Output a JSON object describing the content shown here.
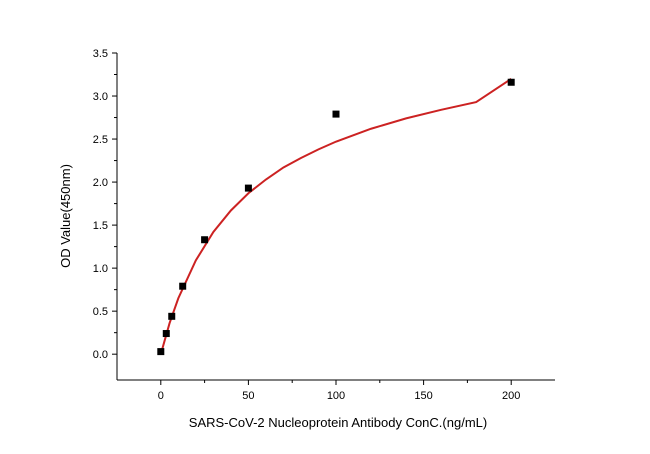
{
  "chart_data": {
    "type": "scatter",
    "title": "",
    "xlabel": "SARS-CoV-2 Nucleoprotein Antibody ConC.(ng/mL)",
    "ylabel": "OD Value(450nm)",
    "xlim": [
      -25,
      225
    ],
    "ylim": [
      -0.3,
      3.5
    ],
    "x_ticks": [
      0,
      50,
      100,
      150,
      200
    ],
    "y_ticks": [
      0.0,
      0.5,
      1.0,
      1.5,
      2.0,
      2.5,
      3.0,
      3.5
    ],
    "x_tick_labels": [
      "0",
      "50",
      "100",
      "150",
      "200"
    ],
    "y_tick_labels": [
      "0.0",
      "0.5",
      "1.0",
      "1.5",
      "2.0",
      "2.5",
      "3.0",
      "3.5"
    ],
    "series": [
      {
        "x": [
          0,
          3.125,
          6.25,
          12.5,
          25,
          50,
          100,
          200
        ],
        "y": [
          0.03,
          0.24,
          0.44,
          0.79,
          1.33,
          1.93,
          2.79,
          3.16
        ]
      }
    ],
    "fit_curve": {
      "x": [
        0,
        5,
        10,
        20,
        30,
        40,
        50,
        60,
        70,
        80,
        90,
        100,
        120,
        140,
        160,
        180,
        200
      ],
      "y": [
        0.0,
        0.36,
        0.65,
        1.09,
        1.42,
        1.67,
        1.87,
        2.03,
        2.17,
        2.28,
        2.38,
        2.47,
        2.62,
        2.74,
        2.84,
        2.93,
        3.2
      ]
    },
    "grid": false,
    "legend": "none",
    "colors": {
      "points": "#000000",
      "fit": "#cc2222",
      "axis": "#000000"
    }
  }
}
